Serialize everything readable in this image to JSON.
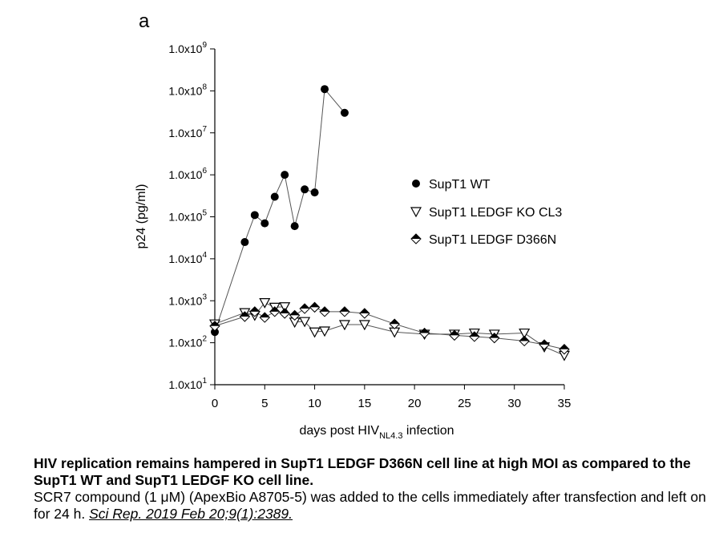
{
  "panel_label": "a",
  "chart_data": {
    "type": "scatter",
    "y_scale": "log10",
    "ylabel": "p24 (pg/ml)",
    "xlabel_main": "days post HIV",
    "xlabel_sub": "NL4.3",
    "xlabel_end": " infection",
    "xlim": [
      0,
      35
    ],
    "ylim": [
      10,
      1000000000
    ],
    "x_ticks": [
      0,
      5,
      10,
      15,
      20,
      25,
      30,
      35
    ],
    "x_tick_labels": [
      "0",
      "5",
      "10",
      "15",
      "20",
      "25",
      "30",
      "35"
    ],
    "y_ticks": [
      {
        "value": 10,
        "mantissa": "1.0x10",
        "exp": "1"
      },
      {
        "value": 100,
        "mantissa": "1.0x10",
        "exp": "2"
      },
      {
        "value": 1000,
        "mantissa": "1.0x10",
        "exp": "3"
      },
      {
        "value": 10000,
        "mantissa": "1.0x10",
        "exp": "4"
      },
      {
        "value": 100000,
        "mantissa": "1.0x10",
        "exp": "5"
      },
      {
        "value": 1000000,
        "mantissa": "1.0x10",
        "exp": "6"
      },
      {
        "value": 10000000,
        "mantissa": "1.0x10",
        "exp": "7"
      },
      {
        "value": 100000000,
        "mantissa": "1.0x10",
        "exp": "8"
      },
      {
        "value": 1000000000,
        "mantissa": "1.0x10",
        "exp": "9"
      }
    ],
    "legend_position": "right",
    "series": [
      {
        "name": "SupT1 WT",
        "marker": "circle",
        "x": [
          0,
          3,
          4,
          5,
          6,
          7,
          8,
          9,
          10,
          11,
          13
        ],
        "y": [
          180,
          25000,
          110000,
          70000,
          300000,
          1000000,
          60000,
          450000,
          380000,
          110000000,
          30000000
        ]
      },
      {
        "name": "SupT1 LEDGF KO CL3",
        "marker": "triangle-down",
        "x": [
          0,
          3,
          4,
          5,
          6,
          7,
          8,
          9,
          10,
          11,
          13,
          15,
          18,
          21,
          24,
          26,
          28,
          31,
          33,
          35
        ],
        "y": [
          280,
          520,
          450,
          900,
          700,
          720,
          310,
          320,
          180,
          190,
          270,
          270,
          180,
          160,
          160,
          170,
          160,
          170,
          80,
          50
        ]
      },
      {
        "name": "SupT1 LEDGF D366N",
        "marker": "diamond-half",
        "x": [
          0,
          3,
          4,
          5,
          6,
          7,
          8,
          9,
          10,
          11,
          13,
          15,
          18,
          21,
          24,
          26,
          28,
          31,
          33,
          35
        ],
        "y": [
          250,
          420,
          550,
          400,
          550,
          500,
          450,
          650,
          700,
          550,
          550,
          500,
          280,
          170,
          150,
          140,
          130,
          110,
          90,
          70
        ]
      }
    ]
  },
  "caption": {
    "title": "HIV replication remains hampered in SupT1 LEDGF D366N cell line at high MOI as compared to the SupT1 WT and SupT1 LEDGF KO cell line.",
    "body": "SCR7 compound (1 μM) (ApexBio A8705-5) was added to the cells immediately after transfection and left on for 24 h. ",
    "citation": "Sci Rep. 2019 Feb 20;9(1):2389."
  }
}
